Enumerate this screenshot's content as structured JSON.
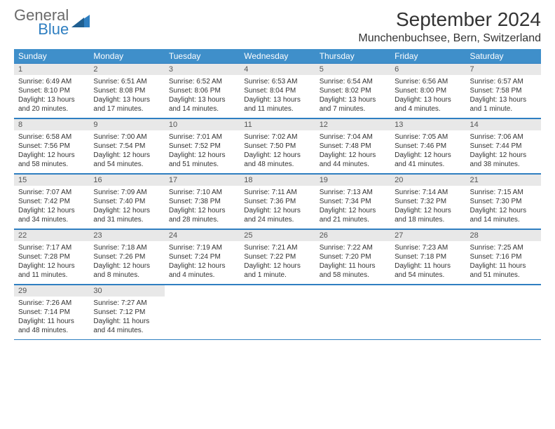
{
  "brand": {
    "name1": "General",
    "name2": "Blue"
  },
  "title": "September 2024",
  "location": "Munchenbuchsee, Bern, Switzerland",
  "day_names": [
    "Sunday",
    "Monday",
    "Tuesday",
    "Wednesday",
    "Thursday",
    "Friday",
    "Saturday"
  ],
  "colors": {
    "header_bg": "#3f8fca",
    "header_text": "#ffffff",
    "band_bg": "#e8e8e8",
    "rule": "#2f7fc1",
    "body_text": "#333333",
    "brand_gray": "#6a6a6a",
    "brand_blue": "#2f7fc1"
  },
  "typography": {
    "title_fontsize": 28,
    "location_fontsize": 16,
    "header_fontsize": 12,
    "cell_fontsize": 10
  },
  "weeks": [
    [
      {
        "n": "1",
        "sr": "Sunrise: 6:49 AM",
        "ss": "Sunset: 8:10 PM",
        "dl": "Daylight: 13 hours and 20 minutes."
      },
      {
        "n": "2",
        "sr": "Sunrise: 6:51 AM",
        "ss": "Sunset: 8:08 PM",
        "dl": "Daylight: 13 hours and 17 minutes."
      },
      {
        "n": "3",
        "sr": "Sunrise: 6:52 AM",
        "ss": "Sunset: 8:06 PM",
        "dl": "Daylight: 13 hours and 14 minutes."
      },
      {
        "n": "4",
        "sr": "Sunrise: 6:53 AM",
        "ss": "Sunset: 8:04 PM",
        "dl": "Daylight: 13 hours and 11 minutes."
      },
      {
        "n": "5",
        "sr": "Sunrise: 6:54 AM",
        "ss": "Sunset: 8:02 PM",
        "dl": "Daylight: 13 hours and 7 minutes."
      },
      {
        "n": "6",
        "sr": "Sunrise: 6:56 AM",
        "ss": "Sunset: 8:00 PM",
        "dl": "Daylight: 13 hours and 4 minutes."
      },
      {
        "n": "7",
        "sr": "Sunrise: 6:57 AM",
        "ss": "Sunset: 7:58 PM",
        "dl": "Daylight: 13 hours and 1 minute."
      }
    ],
    [
      {
        "n": "8",
        "sr": "Sunrise: 6:58 AM",
        "ss": "Sunset: 7:56 PM",
        "dl": "Daylight: 12 hours and 58 minutes."
      },
      {
        "n": "9",
        "sr": "Sunrise: 7:00 AM",
        "ss": "Sunset: 7:54 PM",
        "dl": "Daylight: 12 hours and 54 minutes."
      },
      {
        "n": "10",
        "sr": "Sunrise: 7:01 AM",
        "ss": "Sunset: 7:52 PM",
        "dl": "Daylight: 12 hours and 51 minutes."
      },
      {
        "n": "11",
        "sr": "Sunrise: 7:02 AM",
        "ss": "Sunset: 7:50 PM",
        "dl": "Daylight: 12 hours and 48 minutes."
      },
      {
        "n": "12",
        "sr": "Sunrise: 7:04 AM",
        "ss": "Sunset: 7:48 PM",
        "dl": "Daylight: 12 hours and 44 minutes."
      },
      {
        "n": "13",
        "sr": "Sunrise: 7:05 AM",
        "ss": "Sunset: 7:46 PM",
        "dl": "Daylight: 12 hours and 41 minutes."
      },
      {
        "n": "14",
        "sr": "Sunrise: 7:06 AM",
        "ss": "Sunset: 7:44 PM",
        "dl": "Daylight: 12 hours and 38 minutes."
      }
    ],
    [
      {
        "n": "15",
        "sr": "Sunrise: 7:07 AM",
        "ss": "Sunset: 7:42 PM",
        "dl": "Daylight: 12 hours and 34 minutes."
      },
      {
        "n": "16",
        "sr": "Sunrise: 7:09 AM",
        "ss": "Sunset: 7:40 PM",
        "dl": "Daylight: 12 hours and 31 minutes."
      },
      {
        "n": "17",
        "sr": "Sunrise: 7:10 AM",
        "ss": "Sunset: 7:38 PM",
        "dl": "Daylight: 12 hours and 28 minutes."
      },
      {
        "n": "18",
        "sr": "Sunrise: 7:11 AM",
        "ss": "Sunset: 7:36 PM",
        "dl": "Daylight: 12 hours and 24 minutes."
      },
      {
        "n": "19",
        "sr": "Sunrise: 7:13 AM",
        "ss": "Sunset: 7:34 PM",
        "dl": "Daylight: 12 hours and 21 minutes."
      },
      {
        "n": "20",
        "sr": "Sunrise: 7:14 AM",
        "ss": "Sunset: 7:32 PM",
        "dl": "Daylight: 12 hours and 18 minutes."
      },
      {
        "n": "21",
        "sr": "Sunrise: 7:15 AM",
        "ss": "Sunset: 7:30 PM",
        "dl": "Daylight: 12 hours and 14 minutes."
      }
    ],
    [
      {
        "n": "22",
        "sr": "Sunrise: 7:17 AM",
        "ss": "Sunset: 7:28 PM",
        "dl": "Daylight: 12 hours and 11 minutes."
      },
      {
        "n": "23",
        "sr": "Sunrise: 7:18 AM",
        "ss": "Sunset: 7:26 PM",
        "dl": "Daylight: 12 hours and 8 minutes."
      },
      {
        "n": "24",
        "sr": "Sunrise: 7:19 AM",
        "ss": "Sunset: 7:24 PM",
        "dl": "Daylight: 12 hours and 4 minutes."
      },
      {
        "n": "25",
        "sr": "Sunrise: 7:21 AM",
        "ss": "Sunset: 7:22 PM",
        "dl": "Daylight: 12 hours and 1 minute."
      },
      {
        "n": "26",
        "sr": "Sunrise: 7:22 AM",
        "ss": "Sunset: 7:20 PM",
        "dl": "Daylight: 11 hours and 58 minutes."
      },
      {
        "n": "27",
        "sr": "Sunrise: 7:23 AM",
        "ss": "Sunset: 7:18 PM",
        "dl": "Daylight: 11 hours and 54 minutes."
      },
      {
        "n": "28",
        "sr": "Sunrise: 7:25 AM",
        "ss": "Sunset: 7:16 PM",
        "dl": "Daylight: 11 hours and 51 minutes."
      }
    ],
    [
      {
        "n": "29",
        "sr": "Sunrise: 7:26 AM",
        "ss": "Sunset: 7:14 PM",
        "dl": "Daylight: 11 hours and 48 minutes."
      },
      {
        "n": "30",
        "sr": "Sunrise: 7:27 AM",
        "ss": "Sunset: 7:12 PM",
        "dl": "Daylight: 11 hours and 44 minutes."
      },
      null,
      null,
      null,
      null,
      null
    ]
  ]
}
